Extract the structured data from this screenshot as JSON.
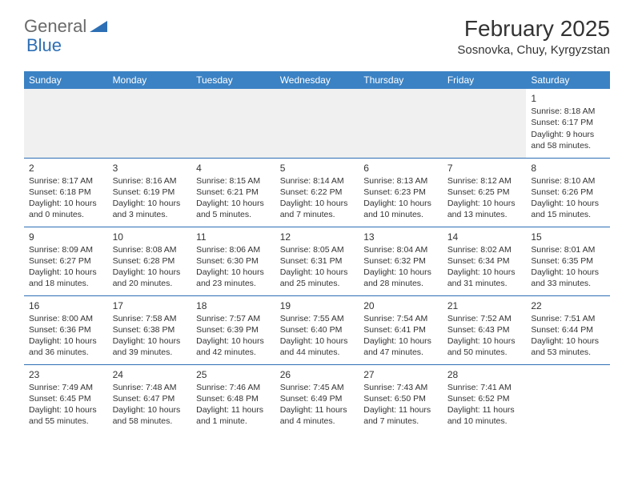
{
  "logo": {
    "general": "General",
    "blue": "Blue"
  },
  "title": {
    "month": "February 2025",
    "location": "Sosnovka, Chuy, Kyrgyzstan"
  },
  "colors": {
    "header_bg": "#3b82c4",
    "header_text": "#ffffff",
    "border": "#2d6fb5",
    "logo_gray": "#6a6a6a",
    "logo_blue": "#2d6fb5",
    "body_text": "#333333",
    "empty_bg": "#f0f0f0"
  },
  "day_headers": [
    "Sunday",
    "Monday",
    "Tuesday",
    "Wednesday",
    "Thursday",
    "Friday",
    "Saturday"
  ],
  "weeks": [
    [
      null,
      null,
      null,
      null,
      null,
      null,
      {
        "n": "1",
        "sr": "Sunrise: 8:18 AM",
        "ss": "Sunset: 6:17 PM",
        "d1": "Daylight: 9 hours",
        "d2": "and 58 minutes."
      }
    ],
    [
      {
        "n": "2",
        "sr": "Sunrise: 8:17 AM",
        "ss": "Sunset: 6:18 PM",
        "d1": "Daylight: 10 hours",
        "d2": "and 0 minutes."
      },
      {
        "n": "3",
        "sr": "Sunrise: 8:16 AM",
        "ss": "Sunset: 6:19 PM",
        "d1": "Daylight: 10 hours",
        "d2": "and 3 minutes."
      },
      {
        "n": "4",
        "sr": "Sunrise: 8:15 AM",
        "ss": "Sunset: 6:21 PM",
        "d1": "Daylight: 10 hours",
        "d2": "and 5 minutes."
      },
      {
        "n": "5",
        "sr": "Sunrise: 8:14 AM",
        "ss": "Sunset: 6:22 PM",
        "d1": "Daylight: 10 hours",
        "d2": "and 7 minutes."
      },
      {
        "n": "6",
        "sr": "Sunrise: 8:13 AM",
        "ss": "Sunset: 6:23 PM",
        "d1": "Daylight: 10 hours",
        "d2": "and 10 minutes."
      },
      {
        "n": "7",
        "sr": "Sunrise: 8:12 AM",
        "ss": "Sunset: 6:25 PM",
        "d1": "Daylight: 10 hours",
        "d2": "and 13 minutes."
      },
      {
        "n": "8",
        "sr": "Sunrise: 8:10 AM",
        "ss": "Sunset: 6:26 PM",
        "d1": "Daylight: 10 hours",
        "d2": "and 15 minutes."
      }
    ],
    [
      {
        "n": "9",
        "sr": "Sunrise: 8:09 AM",
        "ss": "Sunset: 6:27 PM",
        "d1": "Daylight: 10 hours",
        "d2": "and 18 minutes."
      },
      {
        "n": "10",
        "sr": "Sunrise: 8:08 AM",
        "ss": "Sunset: 6:28 PM",
        "d1": "Daylight: 10 hours",
        "d2": "and 20 minutes."
      },
      {
        "n": "11",
        "sr": "Sunrise: 8:06 AM",
        "ss": "Sunset: 6:30 PM",
        "d1": "Daylight: 10 hours",
        "d2": "and 23 minutes."
      },
      {
        "n": "12",
        "sr": "Sunrise: 8:05 AM",
        "ss": "Sunset: 6:31 PM",
        "d1": "Daylight: 10 hours",
        "d2": "and 25 minutes."
      },
      {
        "n": "13",
        "sr": "Sunrise: 8:04 AM",
        "ss": "Sunset: 6:32 PM",
        "d1": "Daylight: 10 hours",
        "d2": "and 28 minutes."
      },
      {
        "n": "14",
        "sr": "Sunrise: 8:02 AM",
        "ss": "Sunset: 6:34 PM",
        "d1": "Daylight: 10 hours",
        "d2": "and 31 minutes."
      },
      {
        "n": "15",
        "sr": "Sunrise: 8:01 AM",
        "ss": "Sunset: 6:35 PM",
        "d1": "Daylight: 10 hours",
        "d2": "and 33 minutes."
      }
    ],
    [
      {
        "n": "16",
        "sr": "Sunrise: 8:00 AM",
        "ss": "Sunset: 6:36 PM",
        "d1": "Daylight: 10 hours",
        "d2": "and 36 minutes."
      },
      {
        "n": "17",
        "sr": "Sunrise: 7:58 AM",
        "ss": "Sunset: 6:38 PM",
        "d1": "Daylight: 10 hours",
        "d2": "and 39 minutes."
      },
      {
        "n": "18",
        "sr": "Sunrise: 7:57 AM",
        "ss": "Sunset: 6:39 PM",
        "d1": "Daylight: 10 hours",
        "d2": "and 42 minutes."
      },
      {
        "n": "19",
        "sr": "Sunrise: 7:55 AM",
        "ss": "Sunset: 6:40 PM",
        "d1": "Daylight: 10 hours",
        "d2": "and 44 minutes."
      },
      {
        "n": "20",
        "sr": "Sunrise: 7:54 AM",
        "ss": "Sunset: 6:41 PM",
        "d1": "Daylight: 10 hours",
        "d2": "and 47 minutes."
      },
      {
        "n": "21",
        "sr": "Sunrise: 7:52 AM",
        "ss": "Sunset: 6:43 PM",
        "d1": "Daylight: 10 hours",
        "d2": "and 50 minutes."
      },
      {
        "n": "22",
        "sr": "Sunrise: 7:51 AM",
        "ss": "Sunset: 6:44 PM",
        "d1": "Daylight: 10 hours",
        "d2": "and 53 minutes."
      }
    ],
    [
      {
        "n": "23",
        "sr": "Sunrise: 7:49 AM",
        "ss": "Sunset: 6:45 PM",
        "d1": "Daylight: 10 hours",
        "d2": "and 55 minutes."
      },
      {
        "n": "24",
        "sr": "Sunrise: 7:48 AM",
        "ss": "Sunset: 6:47 PM",
        "d1": "Daylight: 10 hours",
        "d2": "and 58 minutes."
      },
      {
        "n": "25",
        "sr": "Sunrise: 7:46 AM",
        "ss": "Sunset: 6:48 PM",
        "d1": "Daylight: 11 hours",
        "d2": "and 1 minute."
      },
      {
        "n": "26",
        "sr": "Sunrise: 7:45 AM",
        "ss": "Sunset: 6:49 PM",
        "d1": "Daylight: 11 hours",
        "d2": "and 4 minutes."
      },
      {
        "n": "27",
        "sr": "Sunrise: 7:43 AM",
        "ss": "Sunset: 6:50 PM",
        "d1": "Daylight: 11 hours",
        "d2": "and 7 minutes."
      },
      {
        "n": "28",
        "sr": "Sunrise: 7:41 AM",
        "ss": "Sunset: 6:52 PM",
        "d1": "Daylight: 11 hours",
        "d2": "and 10 minutes."
      },
      null
    ]
  ]
}
